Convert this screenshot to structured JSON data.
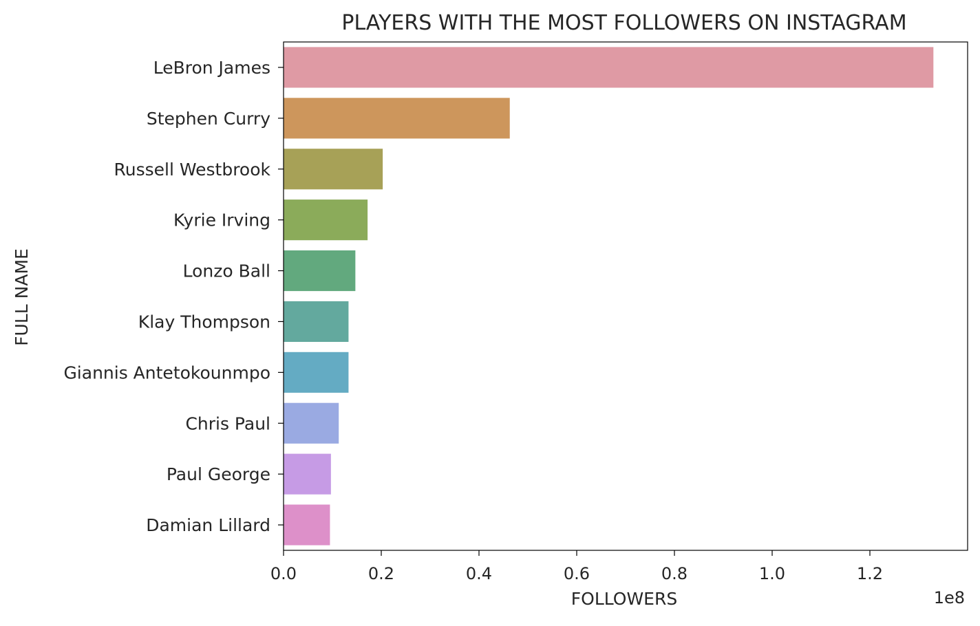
{
  "chart_data": {
    "type": "bar",
    "orientation": "horizontal",
    "title": "PLAYERS WITH THE MOST FOLLOWERS ON INSTAGRAM",
    "xlabel": "FOLLOWERS",
    "ylabel": "FULL NAME",
    "x_scale_label": "1e8",
    "xlim": [
      0,
      1.4
    ],
    "x_ticks": [
      "0.0",
      "0.2",
      "0.4",
      "0.6",
      "0.8",
      "1.0",
      "1.2"
    ],
    "grid": false,
    "legend": "none",
    "categories": [
      "LeBron James",
      "Stephen Curry",
      "Russell Westbrook",
      "Kyrie Irving",
      "Lonzo Ball",
      "Klay Thompson",
      "Giannis Antetokounmpo",
      "Chris Paul",
      "Paul George",
      "Damian Lillard"
    ],
    "values": [
      1.33,
      0.463,
      0.203,
      0.172,
      0.147,
      0.133,
      0.133,
      0.113,
      0.097,
      0.095
    ],
    "colors": [
      "#df9aa4",
      "#cd965c",
      "#a7a157",
      "#8bab5a",
      "#62a97e",
      "#63a99e",
      "#64abc3",
      "#9aaae2",
      "#c69be5",
      "#dd90c9"
    ]
  }
}
